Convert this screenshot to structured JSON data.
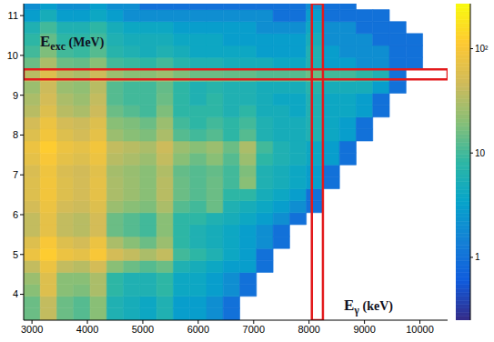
{
  "chart_data": {
    "type": "heatmap",
    "x_label": {
      "text": "E",
      "subscript": "γ",
      "unit": "(keV)"
    },
    "y_label": {
      "text": "E",
      "subscript": "exc",
      "unit": "(MeV)"
    },
    "xlim": [
      2850,
      10500
    ],
    "xticks": [
      3000,
      4000,
      5000,
      6000,
      7000,
      8000,
      9000,
      10000
    ],
    "ylim": [
      3.35,
      11.3
    ],
    "yticks": [
      4,
      5,
      6,
      7,
      8,
      9,
      10,
      11
    ],
    "heatmap": {
      "x_bins": [
        2850,
        3150,
        3450,
        3750,
        4050,
        4350,
        4650,
        4950,
        5250,
        5550,
        5850,
        6150,
        6450,
        6750,
        7050,
        7350,
        7650,
        7950,
        8250,
        8550,
        8850,
        9150,
        9450,
        9750,
        10050,
        10350,
        10500
      ],
      "y_bins": [
        3.35,
        3.65,
        3.95,
        4.25,
        4.55,
        4.85,
        5.15,
        5.45,
        5.75,
        6.05,
        6.35,
        6.65,
        6.95,
        7.25,
        7.55,
        7.85,
        8.15,
        8.45,
        8.75,
        9.05,
        9.35,
        9.65,
        9.95,
        10.25,
        10.55,
        10.85,
        11.15,
        11.3
      ],
      "cells": [
        [
          15,
          40,
          15,
          12,
          20,
          6,
          5,
          4,
          6,
          3,
          3,
          2,
          1,
          0,
          0,
          0,
          0,
          0,
          0,
          0,
          0,
          0,
          0,
          0,
          0,
          0
        ],
        [
          15,
          40,
          15,
          12,
          20,
          6,
          5,
          4,
          6,
          3,
          3,
          2,
          1,
          0,
          0,
          0,
          0,
          0,
          0,
          0,
          0,
          0,
          0,
          0,
          0,
          0
        ],
        [
          20,
          60,
          20,
          18,
          30,
          8,
          6,
          6,
          8,
          4,
          4,
          3,
          2,
          1,
          0,
          0,
          0,
          0,
          0,
          0,
          0,
          0,
          0,
          0,
          0,
          0
        ],
        [
          25,
          60,
          20,
          20,
          30,
          8,
          6,
          6,
          8,
          4,
          4,
          3,
          2,
          1,
          0,
          0,
          0,
          0,
          0,
          0,
          0,
          0,
          0,
          0,
          0,
          0
        ],
        [
          40,
          80,
          40,
          35,
          50,
          20,
          15,
          12,
          15,
          6,
          5,
          4,
          3,
          3,
          1,
          0,
          0,
          0,
          0,
          0,
          0,
          0,
          0,
          0,
          0,
          0
        ],
        [
          80,
          120,
          80,
          70,
          100,
          50,
          40,
          30,
          40,
          10,
          8,
          6,
          4,
          3,
          1,
          0,
          0,
          0,
          0,
          0,
          0,
          0,
          0,
          0,
          0,
          0
        ],
        [
          60,
          100,
          60,
          50,
          80,
          30,
          20,
          15,
          25,
          8,
          6,
          5,
          4,
          3,
          2,
          1,
          0,
          0,
          0,
          0,
          0,
          0,
          0,
          0,
          0,
          0
        ],
        [
          40,
          70,
          40,
          35,
          50,
          15,
          12,
          10,
          20,
          8,
          6,
          5,
          4,
          3,
          2,
          1,
          0,
          0,
          0,
          0,
          0,
          0,
          0,
          0,
          0,
          0
        ],
        [
          40,
          70,
          40,
          35,
          50,
          15,
          12,
          10,
          20,
          8,
          8,
          6,
          5,
          4,
          3,
          2,
          1,
          0,
          0,
          0,
          0,
          0,
          0,
          0,
          0,
          0
        ],
        [
          50,
          80,
          50,
          45,
          60,
          25,
          20,
          18,
          30,
          12,
          10,
          15,
          6,
          5,
          4,
          3,
          2,
          1,
          0,
          0,
          0,
          0,
          0,
          0,
          0,
          0
        ],
        [
          60,
          90,
          60,
          50,
          70,
          30,
          25,
          20,
          35,
          15,
          12,
          15,
          8,
          8,
          5,
          4,
          3,
          1,
          0,
          0,
          0,
          0,
          0,
          0,
          0,
          0
        ],
        [
          60,
          90,
          60,
          50,
          70,
          30,
          25,
          20,
          35,
          15,
          12,
          15,
          10,
          20,
          6,
          5,
          4,
          3,
          1,
          0,
          0,
          0,
          0,
          0,
          0,
          0
        ],
        [
          55,
          85,
          55,
          48,
          65,
          28,
          24,
          20,
          32,
          14,
          12,
          14,
          10,
          18,
          6,
          5,
          4,
          3,
          1,
          0,
          0,
          0,
          0,
          0,
          0,
          0
        ],
        [
          70,
          100,
          70,
          60,
          80,
          35,
          30,
          25,
          40,
          20,
          15,
          20,
          12,
          25,
          8,
          6,
          5,
          4,
          3,
          1,
          0,
          0,
          0,
          0,
          0,
          0
        ],
        [
          80,
          120,
          80,
          70,
          90,
          40,
          35,
          30,
          45,
          25,
          20,
          25,
          15,
          30,
          10,
          6,
          5,
          4,
          3,
          1,
          0,
          0,
          0,
          0,
          0,
          0
        ],
        [
          60,
          90,
          60,
          50,
          70,
          25,
          20,
          18,
          30,
          12,
          10,
          12,
          8,
          12,
          6,
          5,
          5,
          6,
          4,
          3,
          1,
          0,
          0,
          0,
          0,
          0
        ],
        [
          50,
          80,
          50,
          45,
          60,
          20,
          18,
          15,
          25,
          10,
          8,
          10,
          8,
          10,
          6,
          5,
          5,
          6,
          4,
          3,
          1,
          0,
          0,
          0,
          0,
          0
        ],
        [
          35,
          60,
          35,
          30,
          45,
          15,
          12,
          10,
          18,
          8,
          8,
          8,
          6,
          8,
          5,
          5,
          4,
          6,
          4,
          4,
          3,
          1,
          0,
          0,
          0,
          0
        ],
        [
          30,
          50,
          30,
          25,
          40,
          12,
          10,
          10,
          15,
          8,
          6,
          8,
          6,
          6,
          5,
          4,
          4,
          6,
          4,
          4,
          3,
          1,
          0,
          0,
          0,
          0
        ],
        [
          25,
          45,
          25,
          22,
          35,
          12,
          10,
          10,
          14,
          8,
          6,
          7,
          6,
          6,
          5,
          5,
          5,
          7,
          5,
          5,
          5,
          3,
          1,
          0,
          0,
          0
        ],
        [
          35,
          60,
          35,
          30,
          45,
          25,
          20,
          20,
          25,
          18,
          15,
          15,
          14,
          14,
          12,
          12,
          12,
          15,
          10,
          10,
          8,
          6,
          1,
          0,
          0,
          0
        ],
        [
          15,
          30,
          15,
          14,
          20,
          10,
          9,
          8,
          10,
          7,
          6,
          6,
          5,
          5,
          5,
          4,
          4,
          6,
          3,
          3,
          2,
          2,
          1,
          1,
          0,
          0
        ],
        [
          10,
          18,
          10,
          9,
          12,
          7,
          6,
          5,
          6,
          5,
          4,
          4,
          4,
          4,
          3,
          3,
          3,
          6,
          3,
          2,
          2,
          2,
          1,
          1,
          0,
          0
        ],
        [
          8,
          14,
          8,
          8,
          10,
          6,
          5,
          5,
          5,
          4,
          4,
          4,
          3,
          3,
          3,
          3,
          3,
          5,
          2,
          2,
          2,
          1,
          1,
          1,
          0,
          0
        ],
        [
          6,
          10,
          6,
          6,
          8,
          5,
          4,
          4,
          4,
          3,
          3,
          3,
          3,
          3,
          2,
          2,
          2,
          4,
          2,
          2,
          1,
          1,
          1,
          0,
          0,
          0
        ],
        [
          3,
          5,
          3,
          3,
          4,
          3,
          2,
          2,
          2,
          2,
          2,
          2,
          2,
          2,
          2,
          1,
          1,
          3,
          1,
          1,
          1,
          1,
          0,
          0,
          0,
          0
        ],
        [
          2,
          3,
          2,
          2,
          3,
          2,
          2,
          1,
          1,
          1,
          1,
          1,
          1,
          1,
          1,
          1,
          1,
          2,
          1,
          1,
          0,
          0,
          0,
          0,
          0,
          0
        ]
      ],
      "colorbar": {
        "range": [
          0.25,
          270
        ],
        "log": true,
        "ticks": [
          1,
          10,
          {
            "value": 100,
            "label": "10²"
          }
        ]
      }
    },
    "highlights": [
      {
        "axis": "y",
        "range": [
          9.4,
          9.65
        ],
        "color": "#e31a1c"
      },
      {
        "axis": "x",
        "range": [
          8050,
          8250
        ],
        "color": "#e31a1c"
      }
    ]
  }
}
